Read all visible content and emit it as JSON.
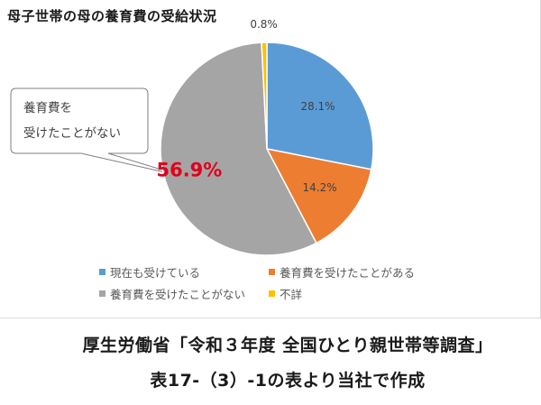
{
  "chart_data": {
    "type": "pie",
    "title": "母子世帯の母の養育費の受給状況",
    "categories": [
      "現在も受けている",
      "養育費を受けたことがある",
      "養育費を受けたことがない",
      "不詳"
    ],
    "values": [
      28.1,
      14.2,
      56.9,
      0.8
    ],
    "labels": [
      "28.1%",
      "14.2%",
      "56.9%",
      "0.8%"
    ],
    "colors": [
      "#5b9bd5",
      "#ed7d31",
      "#a5a5a5",
      "#ffc000"
    ],
    "highlight_color": "#e0001b",
    "legend_position": "bottom",
    "callout": [
      "養育費を",
      "受けたことがない"
    ]
  },
  "caption": {
    "line1": "厚生労働省「令和３年度 全国ひとり親世帯等調査」",
    "line2": "表17-（3）-1の表より当社で作成"
  }
}
